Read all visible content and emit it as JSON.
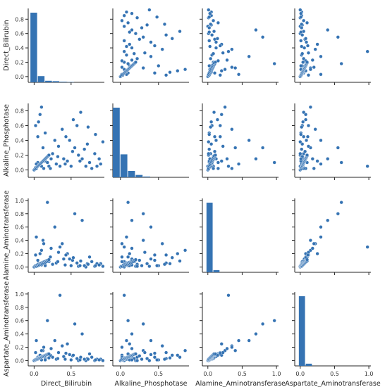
{
  "chart_data": {
    "type": "scatter",
    "title": "",
    "color": "#3573b3",
    "variables": [
      {
        "name": "Direct_Bilirubin",
        "range": [
          -0.08,
          0.95
        ],
        "ticks": [
          0.0,
          0.2,
          0.4,
          0.6,
          0.8
        ],
        "xticks": [
          0.0,
          0.5
        ],
        "tick_labels": [
          "0.0",
          "0.2",
          "0.4",
          "0.6",
          "0.8"
        ],
        "xtick_labels": [
          "0.0",
          "0.5"
        ]
      },
      {
        "name": "Alkaline_Phosphotase",
        "range": [
          -0.1,
          0.9
        ],
        "ticks": [
          0.0,
          0.2,
          0.4,
          0.6,
          0.8
        ],
        "xticks": [
          0.0,
          0.5
        ],
        "tick_labels": [
          "0.0",
          "0.2",
          "0.4",
          "0.6",
          "0.8"
        ],
        "xtick_labels": [
          "0.0",
          "0.5"
        ]
      },
      {
        "name": "Alamine_Aminotransferase",
        "range": [
          -0.08,
          1.03
        ],
        "ticks": [
          0.0,
          0.2,
          0.4,
          0.6,
          0.8,
          1.0
        ],
        "xticks": [
          0.0,
          0.5,
          1.0
        ],
        "tick_labels": [
          "0.0",
          "0.2",
          "0.4",
          "0.6",
          "0.8",
          "1.0"
        ],
        "xtick_labels": [
          "0.0",
          "0.5",
          "1.0"
        ]
      },
      {
        "name": "Aspartate_Aminotransferase",
        "range": [
          -0.08,
          1.03
        ],
        "ticks": [
          0.0,
          0.2,
          0.4,
          0.6,
          0.8,
          1.0
        ],
        "xticks": [
          0.0,
          0.5,
          1.0
        ],
        "tick_labels": [
          "0.0",
          "0.2",
          "0.4",
          "0.6",
          "0.8",
          "1.0"
        ],
        "xtick_labels": [
          "0.0",
          "0.5",
          "1.0"
        ]
      }
    ],
    "histograms": [
      {
        "bins": [
          -0.05,
          0.05,
          0.15,
          0.25,
          0.35,
          0.45,
          0.55
        ],
        "counts": [
          0.9,
          0.08,
          0.02,
          0.015,
          0.008,
          0.005
        ]
      },
      {
        "bins": [
          -0.1,
          0.0,
          0.1,
          0.2,
          0.3,
          0.4
        ],
        "counts": [
          0.88,
          0.29,
          0.08,
          0.03,
          0.01
        ]
      },
      {
        "bins": [
          -0.02,
          0.08,
          0.18
        ],
        "counts": [
          0.95,
          0.03
        ]
      },
      {
        "bins": [
          -0.02,
          0.08,
          0.18
        ],
        "counts": [
          0.95,
          0.03
        ]
      }
    ],
    "records": [
      [
        0.0,
        0.0,
        0.0,
        0.0
      ],
      [
        0.05,
        0.1,
        0.02,
        0.02
      ],
      [
        0.1,
        0.05,
        0.03,
        0.01
      ],
      [
        0.15,
        0.12,
        0.05,
        0.03
      ],
      [
        0.2,
        0.05,
        0.08,
        0.04
      ],
      [
        0.25,
        0.22,
        0.04,
        0.05
      ],
      [
        0.3,
        0.08,
        0.06,
        0.02
      ],
      [
        0.05,
        0.45,
        0.1,
        0.05
      ],
      [
        0.4,
        0.15,
        0.12,
        0.06
      ],
      [
        0.5,
        0.05,
        0.02,
        0.01
      ],
      [
        0.6,
        0.2,
        0.01,
        0.0
      ],
      [
        0.7,
        0.05,
        0.0,
        0.0
      ],
      [
        0.02,
        0.6,
        0.18,
        0.12
      ],
      [
        0.08,
        0.75,
        0.2,
        0.08
      ],
      [
        0.9,
        0.08,
        0.05,
        0.02
      ],
      [
        0.12,
        0.3,
        0.4,
        0.15
      ],
      [
        0.18,
        0.1,
        0.97,
        0.6
      ],
      [
        0.28,
        0.4,
        0.6,
        0.3
      ],
      [
        0.35,
        0.05,
        0.3,
        0.98
      ],
      [
        0.45,
        0.12,
        0.2,
        0.25
      ],
      [
        0.55,
        0.3,
        0.8,
        0.55
      ],
      [
        0.65,
        0.15,
        0.7,
        0.4
      ],
      [
        0.75,
        0.1,
        0.15,
        0.1
      ],
      [
        0.85,
        0.05,
        0.05,
        0.02
      ],
      [
        0.15,
        0.5,
        0.02,
        0.01
      ],
      [
        0.22,
        0.02,
        0.15,
        0.08
      ],
      [
        0.32,
        0.18,
        0.08,
        0.03
      ],
      [
        0.42,
        0.08,
        0.03,
        0.02
      ],
      [
        0.52,
        0.25,
        0.1,
        0.07
      ],
      [
        0.62,
        0.12,
        0.02,
        0.01
      ],
      [
        0.72,
        0.35,
        0.05,
        0.03
      ],
      [
        0.82,
        0.22,
        0.01,
        0.0
      ],
      [
        0.1,
        0.85,
        0.25,
        0.15
      ],
      [
        0.06,
        0.65,
        0.05,
        0.04
      ],
      [
        0.38,
        0.55,
        0.35,
        0.22
      ],
      [
        0.48,
        0.4,
        0.12,
        0.09
      ],
      [
        0.58,
        0.6,
        0.06,
        0.03
      ],
      [
        0.68,
        0.28,
        0.02,
        0.02
      ],
      [
        0.78,
        0.02,
        0.08,
        0.05
      ],
      [
        0.88,
        0.15,
        0.03,
        0.01
      ],
      [
        0.03,
        0.08,
        0.45,
        0.3
      ],
      [
        0.13,
        0.02,
        0.35,
        0.2
      ],
      [
        0.23,
        0.15,
        0.28,
        0.18
      ],
      [
        0.33,
        0.32,
        0.22,
        0.12
      ],
      [
        0.43,
        0.45,
        0.18,
        0.11
      ],
      [
        0.53,
        0.68,
        0.14,
        0.08
      ],
      [
        0.63,
        0.78,
        0.09,
        0.05
      ],
      [
        0.73,
        0.58,
        0.04,
        0.02
      ],
      [
        0.83,
        0.48,
        0.02,
        0.01
      ],
      [
        0.93,
        0.38,
        0.01,
        0.0
      ],
      [
        0.01,
        0.01,
        0.01,
        0.01
      ],
      [
        0.02,
        0.03,
        0.02,
        0.01
      ],
      [
        0.03,
        0.02,
        0.01,
        0.02
      ],
      [
        0.04,
        0.04,
        0.03,
        0.02
      ],
      [
        0.05,
        0.05,
        0.02,
        0.03
      ],
      [
        0.06,
        0.06,
        0.04,
        0.03
      ],
      [
        0.07,
        0.07,
        0.03,
        0.04
      ],
      [
        0.08,
        0.08,
        0.05,
        0.04
      ],
      [
        0.09,
        0.09,
        0.04,
        0.05
      ],
      [
        0.1,
        0.1,
        0.06,
        0.05
      ],
      [
        0.11,
        0.11,
        0.05,
        0.06
      ],
      [
        0.12,
        0.12,
        0.07,
        0.06
      ],
      [
        0.13,
        0.13,
        0.06,
        0.07
      ],
      [
        0.14,
        0.14,
        0.08,
        0.07
      ],
      [
        0.15,
        0.15,
        0.07,
        0.08
      ],
      [
        0.16,
        0.16,
        0.09,
        0.08
      ],
      [
        0.17,
        0.17,
        0.08,
        0.09
      ],
      [
        0.18,
        0.18,
        0.1,
        0.09
      ],
      [
        0.19,
        0.19,
        0.09,
        0.1
      ],
      [
        0.2,
        0.2,
        0.11,
        0.1
      ]
    ]
  }
}
